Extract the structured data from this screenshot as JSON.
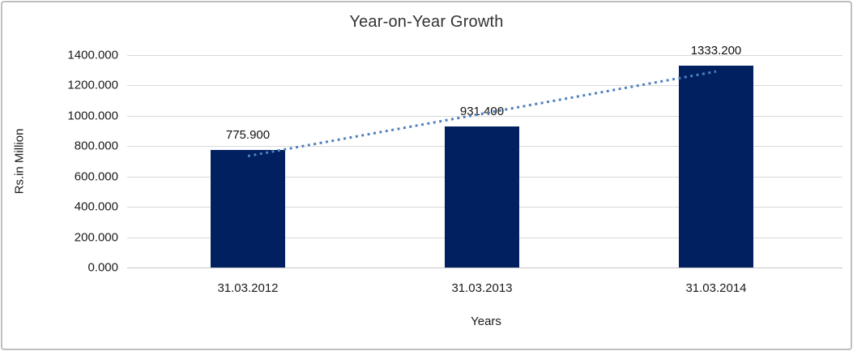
{
  "chart_data": {
    "type": "bar",
    "title": "Year-on-Year Growth",
    "xlabel": "Years",
    "ylabel": "Rs.in Million",
    "categories": [
      "31.03.2012",
      "31.03.2013",
      "31.03.2014"
    ],
    "values": [
      775.9,
      931.4,
      1333.2
    ],
    "value_labels": [
      "775.900",
      "931.400",
      "1333.200"
    ],
    "ylim": [
      0,
      1400
    ],
    "ytick_step": 200,
    "ytick_labels": [
      "0.000",
      "200.000",
      "400.000",
      "600.000",
      "800.000",
      "1000.000",
      "1200.000",
      "1400.000"
    ],
    "grid": true,
    "legend": "none",
    "trendline": {
      "type": "linear",
      "style": "dotted",
      "color": "#4f81bd"
    },
    "colors": {
      "bar": "#002060",
      "gridline": "#d9d9d9",
      "axis_line": "#c6c6c6",
      "border": "#bfbfbf",
      "background": "#ffffff",
      "text": "#1a1a1a"
    }
  }
}
